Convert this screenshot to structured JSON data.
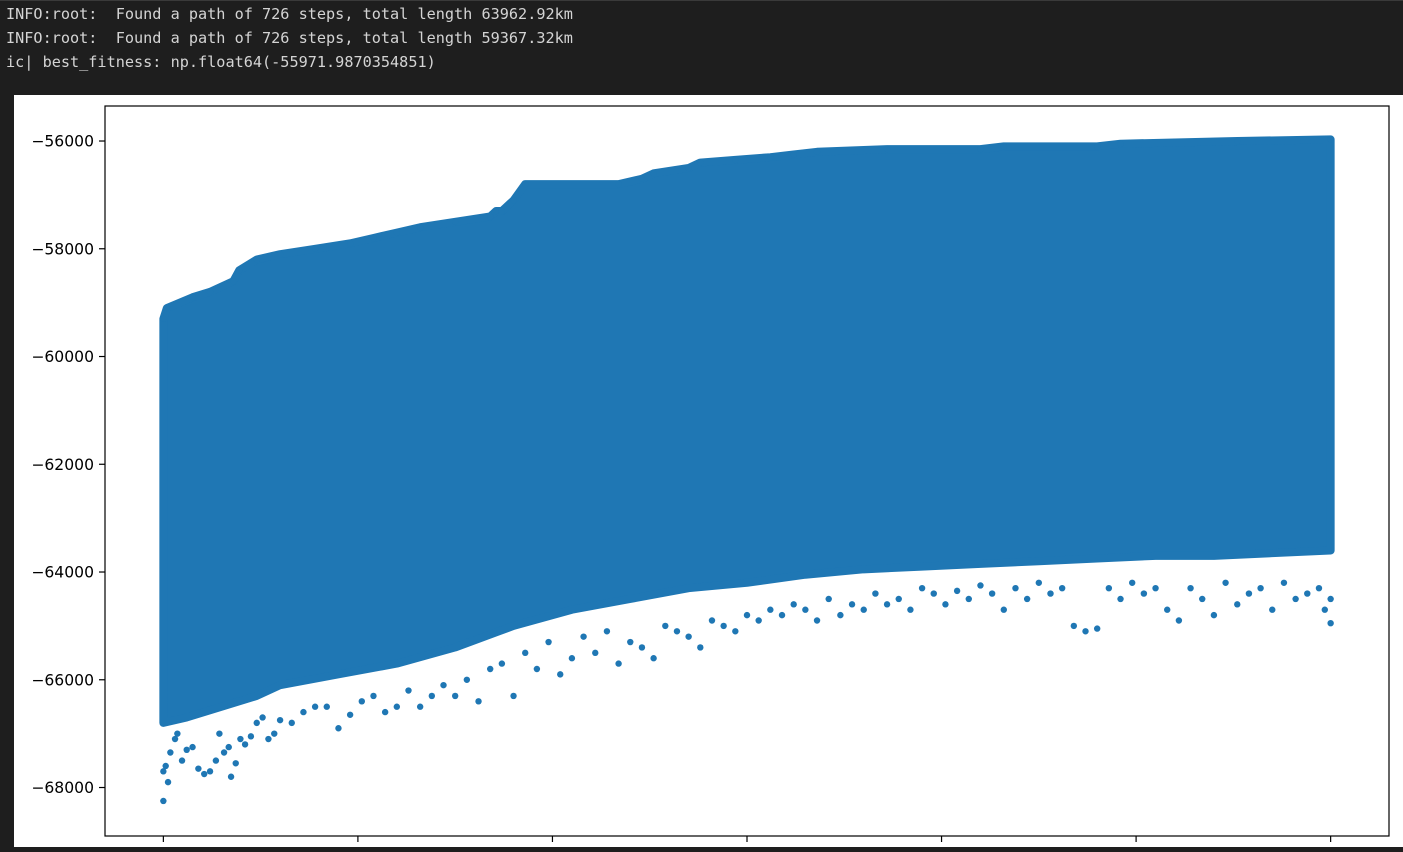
{
  "console": {
    "lines": [
      "INFO:root:  Found a path of 726 steps, total length 63962.92km",
      "INFO:root:  Found a path of 726 steps, total length 59367.32km",
      "ic| best_fitness: np.float64(-55971.9870354851)"
    ]
  },
  "chart_data": {
    "type": "scatter",
    "title": "",
    "xlabel": "",
    "ylabel": "",
    "ylim": [
      -68900,
      -55350
    ],
    "xlim": [
      -0.05,
      1.05
    ],
    "x_tick_labels_visible": false,
    "grid": false,
    "marker_color": "#1f77b4",
    "yticks": [
      {
        "value": -56000,
        "label": "−56000"
      },
      {
        "value": -58000,
        "label": "−58000"
      },
      {
        "value": -60000,
        "label": "−60000"
      },
      {
        "value": -62000,
        "label": "−62000"
      },
      {
        "value": -64000,
        "label": "−64000"
      },
      {
        "value": -66000,
        "label": "−66000"
      },
      {
        "value": -68000,
        "label": "−68000"
      }
    ],
    "best_per_generation": [
      [
        0.0,
        -59300
      ],
      [
        0.003,
        -59100
      ],
      [
        0.025,
        -58900
      ],
      [
        0.04,
        -58800
      ],
      [
        0.06,
        -58600
      ],
      [
        0.065,
        -58400
      ],
      [
        0.08,
        -58200
      ],
      [
        0.1,
        -58100
      ],
      [
        0.13,
        -58000
      ],
      [
        0.16,
        -57900
      ],
      [
        0.18,
        -57800
      ],
      [
        0.2,
        -57700
      ],
      [
        0.22,
        -57600
      ],
      [
        0.25,
        -57500
      ],
      [
        0.28,
        -57400
      ],
      [
        0.29,
        -57300
      ],
      [
        0.285,
        -57300
      ],
      [
        0.3,
        -57100
      ],
      [
        0.31,
        -56800
      ],
      [
        0.39,
        -56800
      ],
      [
        0.41,
        -56700
      ],
      [
        0.42,
        -56600
      ],
      [
        0.45,
        -56500
      ],
      [
        0.46,
        -56400
      ],
      [
        0.49,
        -56350
      ],
      [
        0.52,
        -56300
      ],
      [
        0.54,
        -56250
      ],
      [
        0.56,
        -56200
      ],
      [
        0.62,
        -56150
      ],
      [
        0.7,
        -56150
      ],
      [
        0.72,
        -56100
      ],
      [
        0.8,
        -56100
      ],
      [
        0.82,
        -56050
      ],
      [
        0.92,
        -56000
      ],
      [
        1.0,
        -55970
      ]
    ],
    "lower_envelope": [
      [
        0.0,
        -66800
      ],
      [
        0.02,
        -66700
      ],
      [
        0.05,
        -66500
      ],
      [
        0.08,
        -66300
      ],
      [
        0.1,
        -66100
      ],
      [
        0.15,
        -65900
      ],
      [
        0.2,
        -65700
      ],
      [
        0.25,
        -65400
      ],
      [
        0.3,
        -65000
      ],
      [
        0.35,
        -64700
      ],
      [
        0.4,
        -64500
      ],
      [
        0.45,
        -64300
      ],
      [
        0.5,
        -64200
      ],
      [
        0.55,
        -64050
      ],
      [
        0.6,
        -63950
      ],
      [
        0.65,
        -63900
      ],
      [
        0.7,
        -63850
      ],
      [
        0.75,
        -63800
      ],
      [
        0.8,
        -63750
      ],
      [
        0.85,
        -63700
      ],
      [
        0.9,
        -63700
      ],
      [
        0.95,
        -63650
      ],
      [
        1.0,
        -63600
      ]
    ],
    "outliers": [
      [
        0.0,
        -68250
      ],
      [
        0.0,
        -67700
      ],
      [
        0.002,
        -67600
      ],
      [
        0.004,
        -67900
      ],
      [
        0.006,
        -67350
      ],
      [
        0.01,
        -67100
      ],
      [
        0.012,
        -67000
      ],
      [
        0.016,
        -67500
      ],
      [
        0.02,
        -67300
      ],
      [
        0.025,
        -67250
      ],
      [
        0.03,
        -67650
      ],
      [
        0.035,
        -67750
      ],
      [
        0.04,
        -67700
      ],
      [
        0.045,
        -67500
      ],
      [
        0.048,
        -67000
      ],
      [
        0.052,
        -67350
      ],
      [
        0.056,
        -67250
      ],
      [
        0.058,
        -67800
      ],
      [
        0.062,
        -67550
      ],
      [
        0.066,
        -67100
      ],
      [
        0.07,
        -67200
      ],
      [
        0.075,
        -67050
      ],
      [
        0.08,
        -66800
      ],
      [
        0.085,
        -66700
      ],
      [
        0.09,
        -67100
      ],
      [
        0.095,
        -67000
      ],
      [
        0.1,
        -66750
      ],
      [
        0.11,
        -66800
      ],
      [
        0.12,
        -66600
      ],
      [
        0.13,
        -66500
      ],
      [
        0.14,
        -66500
      ],
      [
        0.15,
        -66900
      ],
      [
        0.16,
        -66650
      ],
      [
        0.17,
        -66400
      ],
      [
        0.18,
        -66300
      ],
      [
        0.19,
        -66600
      ],
      [
        0.2,
        -66500
      ],
      [
        0.21,
        -66200
      ],
      [
        0.22,
        -66500
      ],
      [
        0.23,
        -66300
      ],
      [
        0.24,
        -66100
      ],
      [
        0.25,
        -66300
      ],
      [
        0.26,
        -66000
      ],
      [
        0.27,
        -66400
      ],
      [
        0.28,
        -65800
      ],
      [
        0.29,
        -65700
      ],
      [
        0.3,
        -66300
      ],
      [
        0.31,
        -65500
      ],
      [
        0.32,
        -65800
      ],
      [
        0.33,
        -65300
      ],
      [
        0.34,
        -65900
      ],
      [
        0.35,
        -65600
      ],
      [
        0.36,
        -65200
      ],
      [
        0.37,
        -65500
      ],
      [
        0.38,
        -65100
      ],
      [
        0.39,
        -65700
      ],
      [
        0.4,
        -65300
      ],
      [
        0.41,
        -65400
      ],
      [
        0.42,
        -65600
      ],
      [
        0.43,
        -65000
      ],
      [
        0.44,
        -65100
      ],
      [
        0.45,
        -65200
      ],
      [
        0.46,
        -65400
      ],
      [
        0.47,
        -64900
      ],
      [
        0.48,
        -65000
      ],
      [
        0.49,
        -65100
      ],
      [
        0.5,
        -64800
      ],
      [
        0.51,
        -64900
      ],
      [
        0.52,
        -64700
      ],
      [
        0.53,
        -64800
      ],
      [
        0.54,
        -64600
      ],
      [
        0.55,
        -64700
      ],
      [
        0.56,
        -64900
      ],
      [
        0.57,
        -64500
      ],
      [
        0.58,
        -64800
      ],
      [
        0.59,
        -64600
      ],
      [
        0.6,
        -64700
      ],
      [
        0.61,
        -64400
      ],
      [
        0.62,
        -64600
      ],
      [
        0.63,
        -64500
      ],
      [
        0.64,
        -64700
      ],
      [
        0.65,
        -64300
      ],
      [
        0.66,
        -64400
      ],
      [
        0.67,
        -64600
      ],
      [
        0.68,
        -64350
      ],
      [
        0.69,
        -64500
      ],
      [
        0.7,
        -64250
      ],
      [
        0.71,
        -64400
      ],
      [
        0.72,
        -64700
      ],
      [
        0.73,
        -64300
      ],
      [
        0.74,
        -64500
      ],
      [
        0.75,
        -64200
      ],
      [
        0.76,
        -64400
      ],
      [
        0.77,
        -64300
      ],
      [
        0.78,
        -65000
      ],
      [
        0.79,
        -65100
      ],
      [
        0.8,
        -65050
      ],
      [
        0.81,
        -64300
      ],
      [
        0.82,
        -64500
      ],
      [
        0.83,
        -64200
      ],
      [
        0.84,
        -64400
      ],
      [
        0.85,
        -64300
      ],
      [
        0.86,
        -64700
      ],
      [
        0.87,
        -64900
      ],
      [
        0.88,
        -64300
      ],
      [
        0.89,
        -64500
      ],
      [
        0.9,
        -64800
      ],
      [
        0.91,
        -64200
      ],
      [
        0.92,
        -64600
      ],
      [
        0.93,
        -64400
      ],
      [
        0.94,
        -64300
      ],
      [
        0.95,
        -64700
      ],
      [
        0.96,
        -64200
      ],
      [
        0.97,
        -64500
      ],
      [
        0.98,
        -64400
      ],
      [
        0.99,
        -64300
      ],
      [
        0.995,
        -64700
      ],
      [
        1.0,
        -64500
      ],
      [
        1.0,
        -64950
      ]
    ]
  }
}
